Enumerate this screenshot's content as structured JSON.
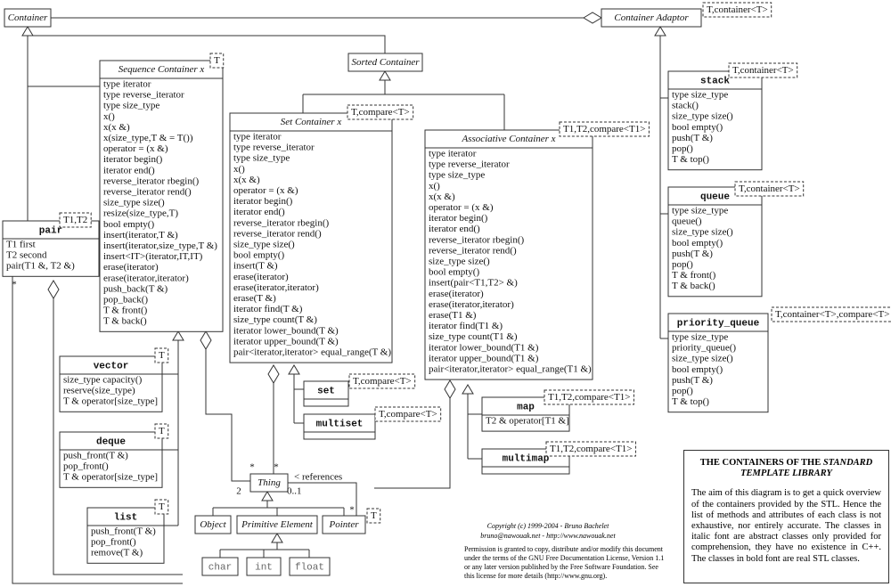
{
  "classes": [
    {
      "name": "Container"
    },
    {
      "name": "Container Adaptor",
      "template": "T,container<T>"
    },
    {
      "name": "Sequence Container x",
      "template": "T",
      "members": [
        "type iterator",
        "type reverse_iterator",
        "type size_type",
        "x()",
        "x(x &)",
        "x(size_type,T & = T())",
        "operator = (x &)",
        "iterator begin()",
        "iterator end()",
        "reverse_iterator rbegin()",
        "reverse_iterator rend()",
        "size_type size()",
        "resize(size_type,T)",
        "bool empty()",
        "insert(iterator,T &)",
        "insert(iterator,size_type,T &)",
        "insert<IT>(iterator,IT,IT)",
        "erase(iterator)",
        "erase(iterator,iterator)",
        "push_back(T &)",
        "pop_back()",
        "T & front()",
        "T & back()"
      ]
    },
    {
      "name": "Sorted Container"
    },
    {
      "name": "Set Container x",
      "template": "T,compare<T>",
      "members": [
        "type iterator",
        "type reverse_iterator",
        "type size_type",
        "x()",
        "x(x &)",
        "operator = (x &)",
        "iterator begin()",
        "iterator end()",
        "reverse_iterator rbegin()",
        "reverse_iterator rend()",
        "size_type size()",
        "bool empty()",
        "insert(T &)",
        "erase(iterator)",
        "erase(iterator,iterator)",
        "erase(T &)",
        "iterator find(T &)",
        "size_type count(T &)",
        "iterator lower_bound(T &)",
        "iterator upper_bound(T &)",
        "pair<iterator,iterator> equal_range(T &)"
      ]
    },
    {
      "name": "Associative Container x",
      "template": "T1,T2,compare<T1>",
      "members": [
        "type iterator",
        "type reverse_iterator",
        "type size_type",
        "x()",
        "x(x &)",
        "operator = (x &)",
        "iterator begin()",
        "iterator end()",
        "reverse_iterator rbegin()",
        "reverse_iterator rend()",
        "size_type size()",
        "bool empty()",
        "insert(pair<T1,T2> &)",
        "erase(iterator)",
        "erase(iterator,iterator)",
        "erase(T1 &)",
        "iterator find(T1 &)",
        "size_type count(T1 &)",
        "iterator lower_bound(T1 &)",
        "iterator upper_bound(T1 &)",
        "pair<iterator,iterator> equal_range(T1 &)"
      ]
    },
    {
      "name": "pair",
      "template": "T1,T2",
      "members": [
        "T1 first",
        "T2 second",
        "pair(T1 &, T2 &)"
      ]
    },
    {
      "name": "stack",
      "template": "T,container<T>",
      "members": [
        "type size_type",
        "stack()",
        "size_type size()",
        "bool empty()",
        "push(T &)",
        "pop()",
        "T & top()"
      ]
    },
    {
      "name": "queue",
      "template": "T,container<T>",
      "members": [
        "type size_type",
        "queue()",
        "size_type size()",
        "bool empty()",
        "push(T &)",
        "pop()",
        "T & front()",
        "T & back()"
      ]
    },
    {
      "name": "priority_queue",
      "template": "T,container<T>,compare<T>",
      "members": [
        "type size_type",
        "priority_queue()",
        "size_type size()",
        "bool empty()",
        "push(T &)",
        "pop()",
        "T & top()"
      ]
    },
    {
      "name": "vector",
      "template": "T",
      "members": [
        "size_type capacity()",
        "reserve(size_type)",
        "T & operator[size_type]"
      ]
    },
    {
      "name": "deque",
      "template": "T",
      "members": [
        "push_front(T &)",
        "pop_front()",
        "T & operator[size_type]"
      ]
    },
    {
      "name": "list",
      "template": "T",
      "members": [
        "push_front(T &)",
        "pop_front()",
        "remove(T &)"
      ]
    },
    {
      "name": "set",
      "template": "T,compare<T>"
    },
    {
      "name": "multiset",
      "template": "T,compare<T>"
    },
    {
      "name": "map",
      "template": "T1,T2,compare<T1>",
      "members": [
        "T2 & operator[T1 &]"
      ]
    },
    {
      "name": "multimap",
      "template": "T1,T2,compare<T1>"
    },
    {
      "name": "Thing"
    },
    {
      "name": "Object"
    },
    {
      "name": "Primitive Element"
    },
    {
      "name": "Pointer",
      "template": "T"
    },
    {
      "name": "char"
    },
    {
      "name": "int"
    },
    {
      "name": "float"
    }
  ],
  "labels": [
    "< references",
    "2",
    "0..1",
    "*",
    "*",
    "*",
    "*"
  ],
  "credits": {
    "copyright": "Copyright (c) 1999-2004 - Bruno Bachelet",
    "contact": "bruno@nawouak.net - http://www.nawouak.net",
    "permission": [
      "Permission is granted to copy, distribute and/or modify this document",
      "under the terms of the GNU Free Documentation License, Version 1.1",
      "or any later version published by the Free Software Foundation. See",
      "this license for more details (http://www.gnu.org)."
    ]
  },
  "info": {
    "title_plain": "THE CONTAINERS OF THE",
    "title_italic": "STANDARD TEMPLATE LIBRARY",
    "body": "The aim of this diagram is to get a quick overview of the containers provided by the STL. Hence the list of methods and attributes of each class is not exhaustive, nor entirely accurate. The classes in italic font are abstract classes only provided for comprehension, they have no existence in C++. The classes in bold font are real STL classes."
  }
}
